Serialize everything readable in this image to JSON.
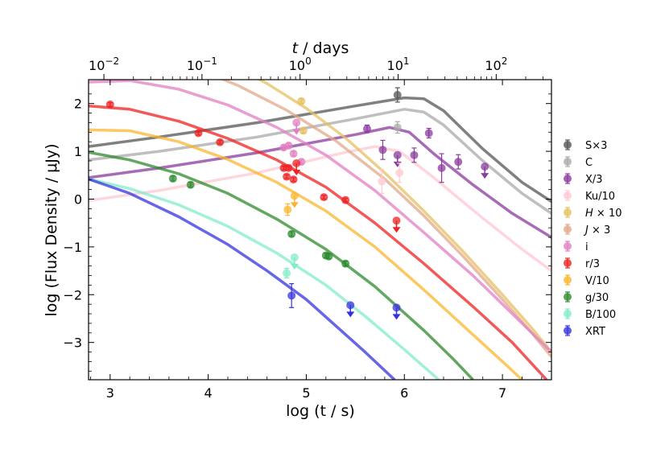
{
  "chart_data": {
    "type": "line",
    "xlabel_bottom": "log (t / s)",
    "xlabel_top_var": "t",
    "xlabel_top_unit": " / days",
    "ylabel": "log (Flux Density / μJy)",
    "xlim": [
      2.78,
      7.5
    ],
    "ylim": [
      -3.78,
      2.5
    ],
    "x_ticks": [
      {
        "value": 3,
        "label": "3"
      },
      {
        "value": 4,
        "label": "4"
      },
      {
        "value": 5,
        "label": "5"
      },
      {
        "value": 6,
        "label": "6"
      },
      {
        "value": 7,
        "label": "7"
      }
    ],
    "y_ticks": [
      {
        "value": 2,
        "label": "2"
      },
      {
        "value": 1,
        "label": "1"
      },
      {
        "value": 0,
        "label": "0"
      },
      {
        "value": -1,
        "label": "−1"
      },
      {
        "value": -2,
        "label": "−2"
      },
      {
        "value": -3,
        "label": "−3"
      }
    ],
    "top_ticks": [
      {
        "days": 0.01,
        "base": "10",
        "exp": "−2"
      },
      {
        "days": 0.1,
        "base": "10",
        "exp": "−1"
      },
      {
        "days": 1,
        "base": "10",
        "exp": "0"
      },
      {
        "days": 10,
        "base": "10",
        "exp": "1"
      },
      {
        "days": 100,
        "base": "10",
        "exp": "2"
      }
    ],
    "legend_position": "right",
    "series": [
      {
        "name": "S×3",
        "color": "#555555",
        "model": [
          [
            2.78,
            1.1
          ],
          [
            3.5,
            1.3
          ],
          [
            4.5,
            1.6
          ],
          [
            5.5,
            1.95
          ],
          [
            6,
            2.12
          ],
          [
            6.2,
            2.1
          ],
          [
            6.4,
            1.85
          ],
          [
            6.8,
            1.05
          ],
          [
            7.2,
            0.35
          ],
          [
            7.5,
            -0.05
          ]
        ],
        "points": [
          {
            "x": 5.93,
            "y": 2.18,
            "err": 0.15
          }
        ]
      },
      {
        "name": "C",
        "color": "#aaaaaa",
        "model": [
          [
            2.78,
            0.82
          ],
          [
            3.5,
            1.0
          ],
          [
            4.5,
            1.3
          ],
          [
            5.5,
            1.68
          ],
          [
            6,
            1.88
          ],
          [
            6.2,
            1.82
          ],
          [
            6.4,
            1.55
          ],
          [
            6.8,
            0.8
          ],
          [
            7.2,
            0.12
          ],
          [
            7.5,
            -0.3
          ]
        ],
        "points": [
          {
            "x": 5.93,
            "y": 1.5,
            "err": 0.12
          }
        ]
      },
      {
        "name": "X/3",
        "color": "#8b3a9e",
        "model": [
          [
            2.78,
            0.45
          ],
          [
            3.5,
            0.65
          ],
          [
            4.5,
            0.97
          ],
          [
            5.5,
            1.35
          ],
          [
            5.85,
            1.5
          ],
          [
            6.05,
            1.4
          ],
          [
            6.3,
            0.95
          ],
          [
            6.7,
            0.3
          ],
          [
            7.1,
            -0.3
          ],
          [
            7.5,
            -0.8
          ]
        ],
        "points": [
          {
            "x": 5.62,
            "y": 1.47,
            "err": 0.08
          },
          {
            "x": 5.78,
            "y": 1.03,
            "err": 0.2
          },
          {
            "x": 5.93,
            "y": 0.92,
            "upper": true
          },
          {
            "x": 6.1,
            "y": 0.92,
            "err": 0.15
          },
          {
            "x": 6.25,
            "y": 1.38,
            "err": 0.1
          },
          {
            "x": 6.38,
            "y": 0.65,
            "err": 0.3
          },
          {
            "x": 6.55,
            "y": 0.78,
            "err": 0.15
          },
          {
            "x": 6.82,
            "y": 0.68,
            "upper": true
          }
        ]
      },
      {
        "name": "Ku/10",
        "color": "#ffc8d2",
        "model": [
          [
            2.78,
            -0.03
          ],
          [
            3.5,
            0.18
          ],
          [
            4.5,
            0.55
          ],
          [
            5.4,
            0.98
          ],
          [
            5.7,
            1.1
          ],
          [
            5.95,
            1.0
          ],
          [
            6.3,
            0.45
          ],
          [
            6.8,
            -0.4
          ],
          [
            7.2,
            -1.05
          ],
          [
            7.5,
            -1.5
          ]
        ],
        "points": [
          {
            "x": 5.77,
            "y": 0.37,
            "err": 0.25
          },
          {
            "x": 5.95,
            "y": 0.55,
            "err": 0.2
          }
        ]
      },
      {
        "name": "H×10",
        "color": "#e6c060",
        "model": [
          [
            4.2,
            2.85
          ],
          [
            4.6,
            2.42
          ],
          [
            5.0,
            1.9
          ],
          [
            5.4,
            1.28
          ],
          [
            5.8,
            0.55
          ],
          [
            6.2,
            -0.25
          ],
          [
            6.6,
            -1.1
          ],
          [
            7.0,
            -2.0
          ],
          [
            7.3,
            -2.7
          ],
          [
            7.5,
            -3.2
          ]
        ],
        "points": [
          {
            "x": 4.95,
            "y": 2.05,
            "err": 0.05
          },
          {
            "x": 4.97,
            "y": 1.43,
            "err": 0.05
          }
        ]
      },
      {
        "name": "J×3",
        "color": "#e2a888",
        "model": [
          [
            3.8,
            2.8
          ],
          [
            4.3,
            2.38
          ],
          [
            4.8,
            1.86
          ],
          [
            5.3,
            1.22
          ],
          [
            5.8,
            0.42
          ],
          [
            6.2,
            -0.35
          ],
          [
            6.6,
            -1.2
          ],
          [
            7.0,
            -2.1
          ],
          [
            7.3,
            -2.8
          ],
          [
            7.5,
            -3.3
          ]
        ],
        "points": []
      },
      {
        "name": "i",
        "color": "#e27fc2",
        "model": [
          [
            2.78,
            2.45
          ],
          [
            3.2,
            2.48
          ],
          [
            3.7,
            2.3
          ],
          [
            4.2,
            1.97
          ],
          [
            4.7,
            1.5
          ],
          [
            5.2,
            0.92
          ],
          [
            5.7,
            0.18
          ],
          [
            6.2,
            -0.7
          ],
          [
            6.7,
            -1.6
          ],
          [
            7.1,
            -2.4
          ],
          [
            7.5,
            -3.2
          ]
        ],
        "points": [
          {
            "x": 4.77,
            "y": 1.08,
            "err": 0.05
          },
          {
            "x": 4.82,
            "y": 1.12,
            "err": 0.05
          },
          {
            "x": 4.87,
            "y": 0.95,
            "err": 0.05
          },
          {
            "x": 4.9,
            "y": 1.6,
            "upper": true
          },
          {
            "x": 4.95,
            "y": 0.78,
            "err": 0.05
          }
        ]
      },
      {
        "name": "r/3",
        "color": "#ee2222",
        "model": [
          [
            2.78,
            1.95
          ],
          [
            3.2,
            1.88
          ],
          [
            3.7,
            1.63
          ],
          [
            4.2,
            1.27
          ],
          [
            4.7,
            0.82
          ],
          [
            5.2,
            0.25
          ],
          [
            5.7,
            -0.5
          ],
          [
            6.2,
            -1.35
          ],
          [
            6.7,
            -2.25
          ],
          [
            7.1,
            -3.0
          ],
          [
            7.45,
            -3.78
          ]
        ],
        "points": [
          {
            "x": 3.0,
            "y": 1.98,
            "err": 0.04
          },
          {
            "x": 3.9,
            "y": 1.38,
            "err": 0.04
          },
          {
            "x": 4.12,
            "y": 1.19,
            "err": 0.04
          },
          {
            "x": 4.77,
            "y": 0.65,
            "err": 0.04
          },
          {
            "x": 4.8,
            "y": 0.47,
            "err": 0.04
          },
          {
            "x": 4.82,
            "y": 0.65,
            "err": 0.04
          },
          {
            "x": 4.87,
            "y": 0.41,
            "err": 0.04
          },
          {
            "x": 4.9,
            "y": 0.75,
            "upper": true
          },
          {
            "x": 5.18,
            "y": 0.04,
            "err": 0.04
          },
          {
            "x": 5.4,
            "y": -0.02,
            "err": 0.04
          },
          {
            "x": 5.92,
            "y": -0.45,
            "upper": true
          }
        ]
      },
      {
        "name": "V/10",
        "color": "#f9b52d",
        "model": [
          [
            2.78,
            1.45
          ],
          [
            3.2,
            1.43
          ],
          [
            3.7,
            1.2
          ],
          [
            4.2,
            0.83
          ],
          [
            4.7,
            0.35
          ],
          [
            5.2,
            -0.25
          ],
          [
            5.7,
            -1.0
          ],
          [
            6.2,
            -1.9
          ],
          [
            6.6,
            -2.65
          ],
          [
            7.0,
            -3.4
          ],
          [
            7.2,
            -3.78
          ]
        ],
        "points": [
          {
            "x": 4.81,
            "y": -0.22,
            "err": 0.12
          },
          {
            "x": 4.88,
            "y": 0.07,
            "upper": true
          }
        ]
      },
      {
        "name": "g/30",
        "color": "#2e8b2e",
        "model": [
          [
            2.78,
            0.98
          ],
          [
            3.2,
            0.82
          ],
          [
            3.7,
            0.53
          ],
          [
            4.2,
            0.12
          ],
          [
            4.7,
            -0.42
          ],
          [
            5.2,
            -1.05
          ],
          [
            5.7,
            -1.83
          ],
          [
            6.2,
            -2.75
          ],
          [
            6.5,
            -3.35
          ],
          [
            6.7,
            -3.78
          ]
        ],
        "points": [
          {
            "x": 3.64,
            "y": 0.43,
            "err": 0.05
          },
          {
            "x": 3.82,
            "y": 0.3,
            "err": 0.05
          },
          {
            "x": 4.85,
            "y": -0.73,
            "err": 0.05
          },
          {
            "x": 5.2,
            "y": -1.18,
            "err": 0.05
          },
          {
            "x": 5.23,
            "y": -1.2,
            "err": 0.05
          },
          {
            "x": 5.4,
            "y": -1.35,
            "err": 0.05
          }
        ]
      },
      {
        "name": "B/100",
        "color": "#80ecc8",
        "model": [
          [
            2.78,
            0.42
          ],
          [
            3.2,
            0.22
          ],
          [
            3.7,
            -0.12
          ],
          [
            4.2,
            -0.57
          ],
          [
            4.7,
            -1.13
          ],
          [
            5.2,
            -1.8
          ],
          [
            5.6,
            -2.45
          ],
          [
            6.0,
            -3.15
          ],
          [
            6.35,
            -3.78
          ]
        ],
        "points": [
          {
            "x": 4.8,
            "y": -1.55,
            "err": 0.1
          },
          {
            "x": 4.88,
            "y": -1.22,
            "upper": true
          }
        ]
      },
      {
        "name": "XRT",
        "color": "#3333dd",
        "model": [
          [
            2.78,
            0.42
          ],
          [
            3.2,
            0.12
          ],
          [
            3.7,
            -0.37
          ],
          [
            4.2,
            -0.95
          ],
          [
            4.6,
            -1.5
          ],
          [
            5.0,
            -2.1
          ],
          [
            5.3,
            -2.65
          ],
          [
            5.6,
            -3.2
          ],
          [
            5.9,
            -3.78
          ]
        ],
        "points": [
          {
            "x": 4.85,
            "y": -2.02,
            "err": 0.25
          },
          {
            "x": 5.45,
            "y": -2.22,
            "upper": true
          },
          {
            "x": 5.92,
            "y": -2.27,
            "upper": true
          }
        ]
      }
    ]
  }
}
